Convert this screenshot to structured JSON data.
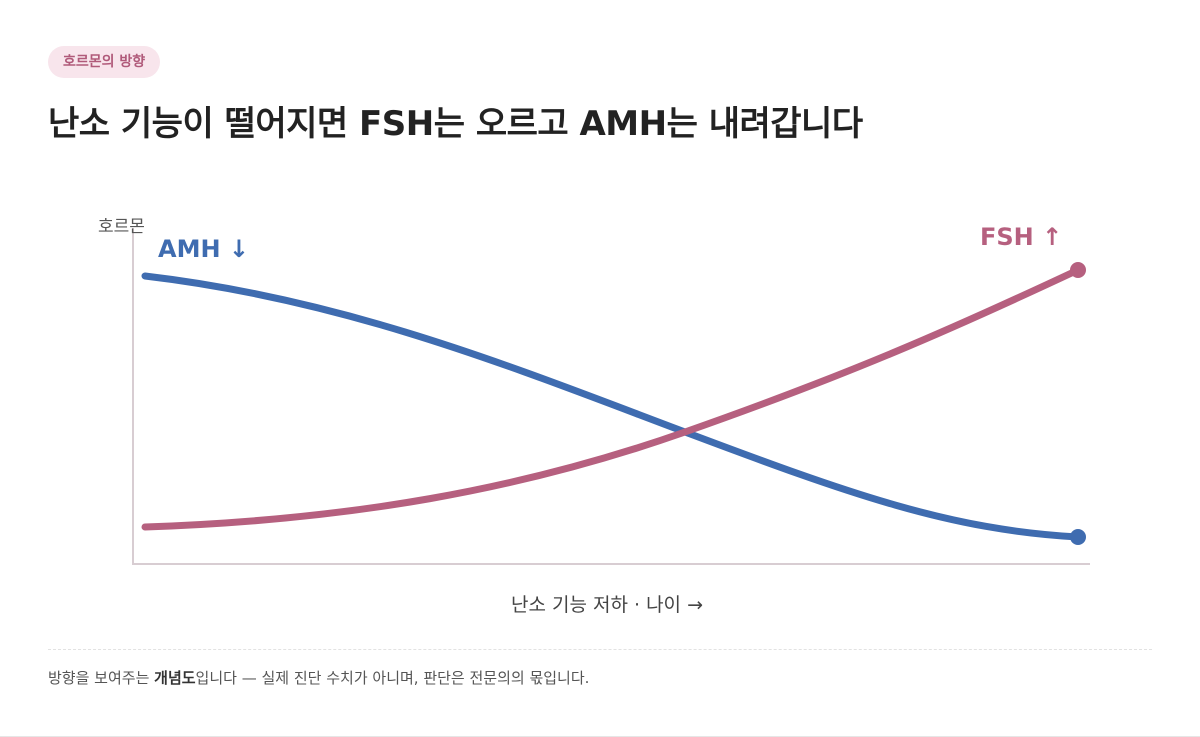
{
  "badge": "호르몬의 방향",
  "title": "난소 기능이 떨어지면 FSH는 오르고 AMH는 내려갑니다",
  "diagram": {
    "y_label": "호르몬",
    "x_label": "난소 기능 저하 · 나이 →",
    "curves": [
      {
        "label": "AMH ↓"
      },
      {
        "label": "FSH ↑"
      }
    ]
  },
  "footnote": {
    "before": "방향을 보여주는 ",
    "bold": "개념도",
    "after": "입니다 — 실제 진단 수치가 아니며, 판단은 전문의의 몫입니다."
  }
}
